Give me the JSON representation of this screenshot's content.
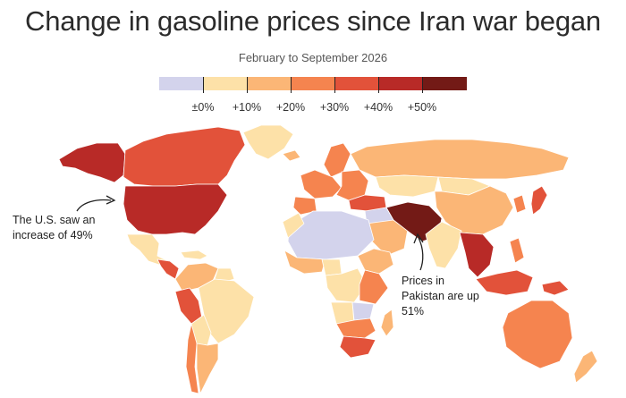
{
  "title": "Change in gasoline prices since Iran war began",
  "subtitle": "February to September 2026",
  "legend": {
    "colors": [
      "#d3d3ec",
      "#fde1a8",
      "#fbb676",
      "#f5844f",
      "#e2523a",
      "#b82a27",
      "#731a16"
    ],
    "ticks": [
      "±0%",
      "+10%",
      "+20%",
      "+30%",
      "+40%",
      "+50%"
    ]
  },
  "annotations": {
    "us": "The U.S. saw an increase of 49%",
    "pakistan": "Prices in Pakistan are up 51%"
  },
  "map": {
    "no_data_color": "#dcdcdc",
    "regions": [
      {
        "name": "Alaska",
        "class": 5
      },
      {
        "name": "Canada",
        "class": 4
      },
      {
        "name": "Greenland",
        "class": 1
      },
      {
        "name": "United States",
        "class": 5
      },
      {
        "name": "Mexico",
        "class": 1
      },
      {
        "name": "Central America",
        "class": 4
      },
      {
        "name": "Caribbean",
        "class": 1
      },
      {
        "name": "Colombia / Venezuela",
        "class": 2
      },
      {
        "name": "Guianas",
        "class": 1
      },
      {
        "name": "Peru",
        "class": 4
      },
      {
        "name": "Brazil",
        "class": 1
      },
      {
        "name": "Bolivia / Paraguay",
        "class": 1
      },
      {
        "name": "Chile",
        "class": 3
      },
      {
        "name": "Argentina",
        "class": 2
      },
      {
        "name": "Iceland",
        "class": 2
      },
      {
        "name": "Scandinavia",
        "class": 3
      },
      {
        "name": "Western Europe",
        "class": 3
      },
      {
        "name": "Iberia",
        "class": 3
      },
      {
        "name": "Eastern Europe",
        "class": 3
      },
      {
        "name": "Russia",
        "class": 2
      },
      {
        "name": "Kazakhstan",
        "class": 1
      },
      {
        "name": "Mongolia",
        "class": 1
      },
      {
        "name": "China",
        "class": 2
      },
      {
        "name": "Korea",
        "class": 3
      },
      {
        "name": "Japan",
        "class": 4
      },
      {
        "name": "Turkey",
        "class": 4
      },
      {
        "name": "Middle East",
        "class": 0
      },
      {
        "name": "Saudi Arabia",
        "class": 2
      },
      {
        "name": "Iran / Pakistan",
        "class": 6
      },
      {
        "name": "India",
        "class": 1
      },
      {
        "name": "Southeast Asia",
        "class": 5
      },
      {
        "name": "Indonesia",
        "class": 4
      },
      {
        "name": "Philippines",
        "class": 3
      },
      {
        "name": "Australia",
        "class": 3
      },
      {
        "name": "New Zealand",
        "class": 2
      },
      {
        "name": "Papua New Guinea",
        "class": 4
      },
      {
        "name": "North Africa",
        "class": 0
      },
      {
        "name": "Morocco",
        "class": 1
      },
      {
        "name": "West Africa",
        "class": 2
      },
      {
        "name": "Nigeria",
        "class": 1
      },
      {
        "name": "Central Africa",
        "class": 1
      },
      {
        "name": "Ethiopia",
        "class": 2
      },
      {
        "name": "Kenya / Tanzania",
        "class": 3
      },
      {
        "name": "Angola",
        "class": 1
      },
      {
        "name": "Zambia",
        "class": 0
      },
      {
        "name": "Southern Africa",
        "class": 3
      },
      {
        "name": "South Africa",
        "class": 4
      },
      {
        "name": "Madagascar",
        "class": 2
      }
    ]
  }
}
